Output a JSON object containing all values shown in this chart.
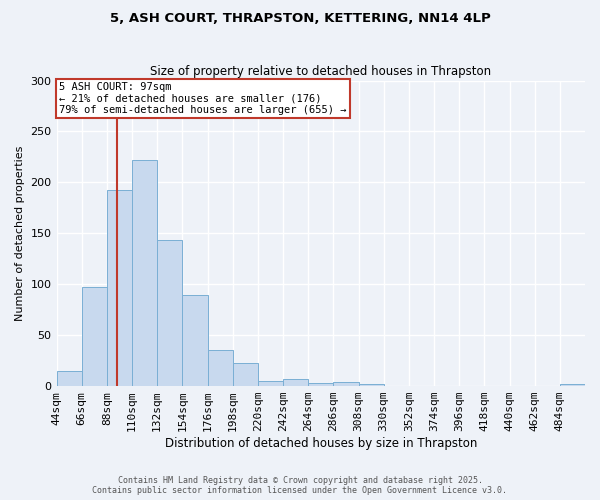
{
  "title_line1": "5, ASH COURT, THRAPSTON, KETTERING, NN14 4LP",
  "title_line2": "Size of property relative to detached houses in Thrapston",
  "xlabel": "Distribution of detached houses by size in Thrapston",
  "ylabel": "Number of detached properties",
  "bin_labels": [
    "44sqm",
    "66sqm",
    "88sqm",
    "110sqm",
    "132sqm",
    "154sqm",
    "176sqm",
    "198sqm",
    "220sqm",
    "242sqm",
    "264sqm",
    "286sqm",
    "308sqm",
    "330sqm",
    "352sqm",
    "374sqm",
    "396sqm",
    "418sqm",
    "440sqm",
    "462sqm",
    "484sqm"
  ],
  "bin_edges": [
    44,
    66,
    88,
    110,
    132,
    154,
    176,
    198,
    220,
    242,
    264,
    286,
    308,
    330,
    352,
    374,
    396,
    418,
    440,
    462,
    484,
    506
  ],
  "bar_heights": [
    15,
    97,
    193,
    222,
    143,
    89,
    35,
    23,
    5,
    7,
    3,
    4,
    2,
    0,
    0,
    0,
    0,
    0,
    0,
    0,
    2
  ],
  "bar_color": "#c8d9ee",
  "bar_edge_color": "#7aafd4",
  "property_size": 97,
  "property_line_color": "#c0392b",
  "annotation_line1": "5 ASH COURT: 97sqm",
  "annotation_line2": "← 21% of detached houses are smaller (176)",
  "annotation_line3": "79% of semi-detached houses are larger (655) →",
  "annotation_box_color": "#c0392b",
  "ylim": [
    0,
    300
  ],
  "yticks": [
    0,
    50,
    100,
    150,
    200,
    250,
    300
  ],
  "footer_line1": "Contains HM Land Registry data © Crown copyright and database right 2025.",
  "footer_line2": "Contains public sector information licensed under the Open Government Licence v3.0.",
  "bg_color": "#eef2f8",
  "plot_bg_color": "#eef2f8",
  "grid_color": "#ffffff"
}
